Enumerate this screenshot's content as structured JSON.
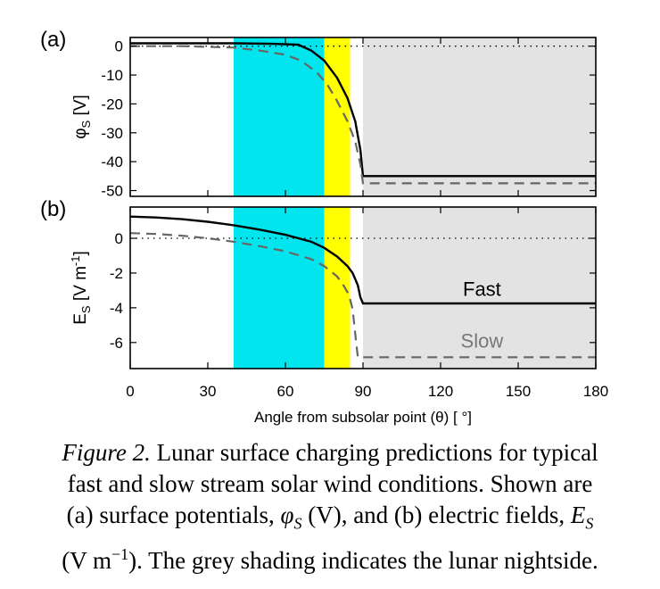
{
  "chart_data": [
    {
      "type": "line",
      "panel_label": "(a)",
      "ylabel_main": "φ",
      "ylabel_sub": "S",
      "ylabel_unit": " [V]",
      "xlim": [
        0,
        180
      ],
      "ylim": [
        -52,
        3
      ],
      "yticks": [
        0,
        -10,
        -20,
        -30,
        -40,
        -50
      ],
      "ytick_labels": [
        "0",
        "-10",
        "-20",
        "-30",
        "-40",
        "-50"
      ],
      "reference_line": 0,
      "shaded_regions": [
        {
          "x0": 40,
          "x1": 75,
          "color": "#00e5ee"
        },
        {
          "x0": 75,
          "x1": 85,
          "color": "#ffff00"
        },
        {
          "x0": 90,
          "x1": 180,
          "color": "#e3e3e3"
        }
      ],
      "series": [
        {
          "style": "solid",
          "color": "#000000",
          "x": [
            0,
            20,
            40,
            55,
            65,
            70,
            75,
            80,
            84,
            87,
            89,
            90,
            100,
            120,
            150,
            180
          ],
          "y": [
            1,
            1,
            1,
            0.8,
            0.5,
            -1.5,
            -5,
            -11,
            -18,
            -26,
            -36,
            -45,
            -45,
            -45,
            -45,
            -45
          ]
        },
        {
          "style": "dashed",
          "color": "#666666",
          "x": [
            0,
            20,
            40,
            50,
            60,
            66,
            72,
            76,
            80,
            84,
            87,
            89,
            90,
            100,
            120,
            150,
            180
          ],
          "y": [
            0,
            0,
            -0.5,
            -1.5,
            -3,
            -5,
            -9,
            -13,
            -19,
            -26,
            -33,
            -41,
            -47.5,
            -47.5,
            -47.5,
            -47.5,
            -47.5
          ]
        }
      ]
    },
    {
      "type": "line",
      "panel_label": "(b)",
      "ylabel_main": "E",
      "ylabel_sub": "S",
      "ylabel_unit": " [V m",
      "ylabel_sup": "-1",
      "ylabel_end": "]",
      "xlim": [
        0,
        180
      ],
      "ylim": [
        -7.5,
        1.8
      ],
      "yticks": [
        0,
        -2,
        -4,
        -6
      ],
      "ytick_labels": [
        "0",
        "-2",
        "-4",
        "-6"
      ],
      "xticks": [
        0,
        30,
        60,
        90,
        120,
        150,
        180
      ],
      "xtick_labels": [
        "0",
        "30",
        "60",
        "90",
        "120",
        "150",
        "180"
      ],
      "xlabel": "Angle from subsolar point (θ) [ °]",
      "reference_line": 0,
      "shaded_regions": [
        {
          "x0": 40,
          "x1": 75,
          "color": "#00e5ee"
        },
        {
          "x0": 75,
          "x1": 85,
          "color": "#ffff00"
        },
        {
          "x0": 90,
          "x1": 180,
          "color": "#e3e3e3"
        }
      ],
      "annotations": [
        {
          "text": "Fast",
          "x": 136,
          "y": -3.3
        },
        {
          "text": "Slow",
          "x": 136,
          "y": -6.3
        }
      ],
      "series": [
        {
          "style": "solid",
          "color": "#000000",
          "x": [
            0,
            10,
            20,
            30,
            40,
            50,
            60,
            70,
            75,
            80,
            84,
            86,
            88,
            89,
            90,
            100,
            120,
            150,
            180
          ],
          "y": [
            1.25,
            1.2,
            1.1,
            0.95,
            0.75,
            0.5,
            0.2,
            -0.2,
            -0.55,
            -1.05,
            -1.6,
            -2.0,
            -2.7,
            -3.4,
            -3.75,
            -3.75,
            -3.75,
            -3.75,
            -3.75
          ]
        },
        {
          "style": "dashed",
          "color": "#666666",
          "x": [
            0,
            10,
            20,
            30,
            40,
            50,
            60,
            70,
            75,
            80,
            82,
            84,
            85,
            86,
            87,
            88,
            100,
            120,
            150,
            180
          ],
          "y": [
            0.3,
            0.25,
            0.15,
            0,
            -0.2,
            -0.45,
            -0.75,
            -1.2,
            -1.6,
            -2.2,
            -2.6,
            -3.1,
            -3.5,
            -4.1,
            -5.5,
            -6.85,
            -6.85,
            -6.85,
            -6.85,
            -6.85
          ]
        }
      ]
    }
  ],
  "caption": {
    "fig_label": "Figure 2.",
    "line1_rest": "  Lunar surface charging predictions for typical",
    "line2": "fast and slow stream solar wind conditions.  Shown are",
    "line3_a": "(a) surface potentials, ",
    "line3_phi": "φ",
    "line3_sub": "S",
    "line3_b": "  (V), and (b) electric fields, ",
    "line3_E": "E",
    "line3_sub2": "S",
    "line4_a": "(V m",
    "line4_sup": "−1",
    "line4_b": ").  The grey shading indicates the lunar nightside."
  }
}
